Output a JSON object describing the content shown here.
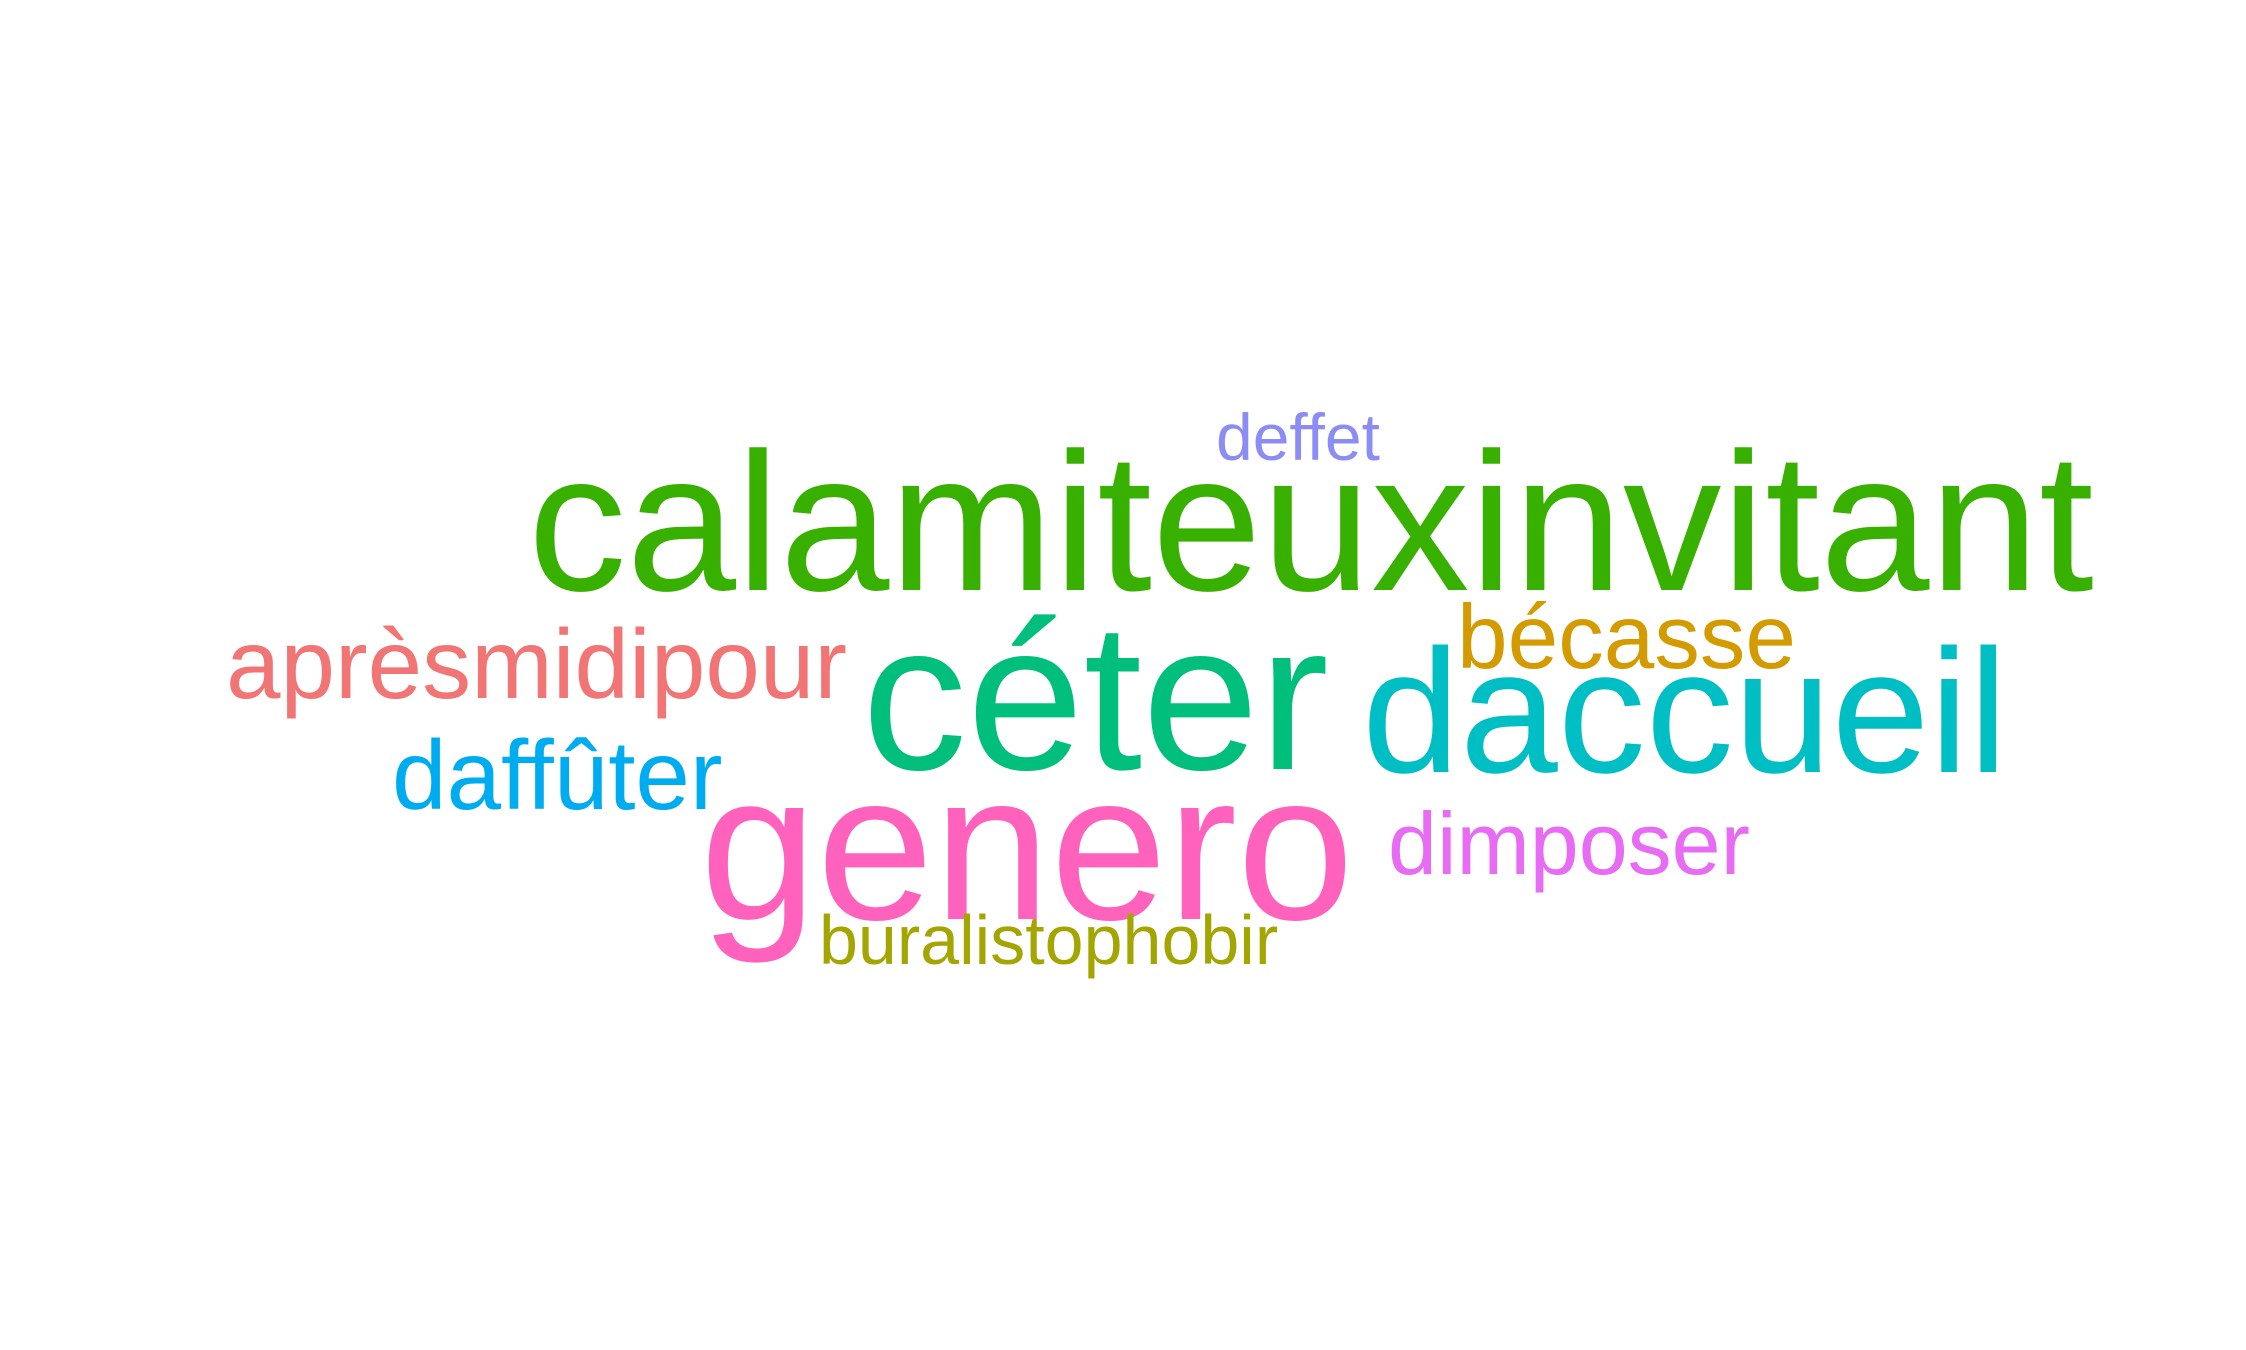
{
  "words": [
    {
      "text": "deffet",
      "color": "#8c8cf5"
    },
    {
      "text": "calamiteuxinvitant",
      "color": "#38b000"
    },
    {
      "text": "bécasse",
      "color": "#d49b00"
    },
    {
      "text": "aprèsmidipour",
      "color": "#f17575"
    },
    {
      "text": "céter",
      "color": "#00bf7d"
    },
    {
      "text": "daccueil",
      "color": "#00bfc4"
    },
    {
      "text": "daffûter",
      "color": "#00acf0"
    },
    {
      "text": "genero",
      "color": "#ff62bc"
    },
    {
      "text": "dimposer",
      "color": "#e76bf3"
    },
    {
      "text": "buralistophobir",
      "color": "#a3a500"
    }
  ]
}
